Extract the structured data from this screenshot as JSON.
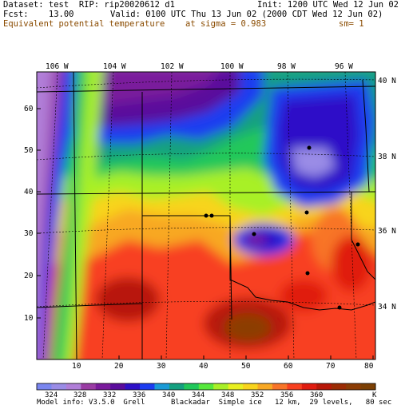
{
  "header": {
    "dataset": "Dataset: test  RIP: rip20020612 d1",
    "init": "Init: 1200 UTC Wed 12 Jun 02",
    "fcst": "Fcst:    13.00",
    "valid": "Valid: 0100 UTC Thu 13 Jun 02 (2000 CDT Wed 12 Jun 02)",
    "field": "Equivalent potential temperature",
    "sigma": "at sigma = 0.983",
    "units": "sm= 1"
  },
  "map": {
    "lon_labels": [
      "106 W",
      "104 W",
      "102 W",
      "100 W",
      "98 W",
      "96 W"
    ],
    "lat_labels": [
      "40 N",
      "38 N",
      "36 N",
      "34 N"
    ],
    "x_ticks": [
      "10",
      "20",
      "30",
      "40",
      "50",
      "60",
      "70",
      "80"
    ],
    "y_ticks": [
      "10",
      "20",
      "30",
      "40",
      "50",
      "60"
    ]
  },
  "colorbar": {
    "labels": [
      "324",
      "328",
      "332",
      "336",
      "340",
      "344",
      "348",
      "352",
      "356",
      "360"
    ],
    "unit": "K",
    "colors": [
      "#7a86f0",
      "#9a8ce6",
      "#b07ed8",
      "#9a3ca4",
      "#7a1a9c",
      "#5a0c9c",
      "#2e10c8",
      "#1c3cf0",
      "#1a9ad6",
      "#14a080",
      "#20c85a",
      "#56e83c",
      "#a8f028",
      "#e8f020",
      "#f8d41c",
      "#f8a824",
      "#f87428",
      "#f84020",
      "#e01c10",
      "#b81808",
      "#9c2c04",
      "#8c3c04",
      "#7c4004"
    ]
  },
  "footer": {
    "model": "Model info: V3.5.0  Grell      Blackadar  Simple ice   12 km,  29 levels,   80 sec"
  }
}
